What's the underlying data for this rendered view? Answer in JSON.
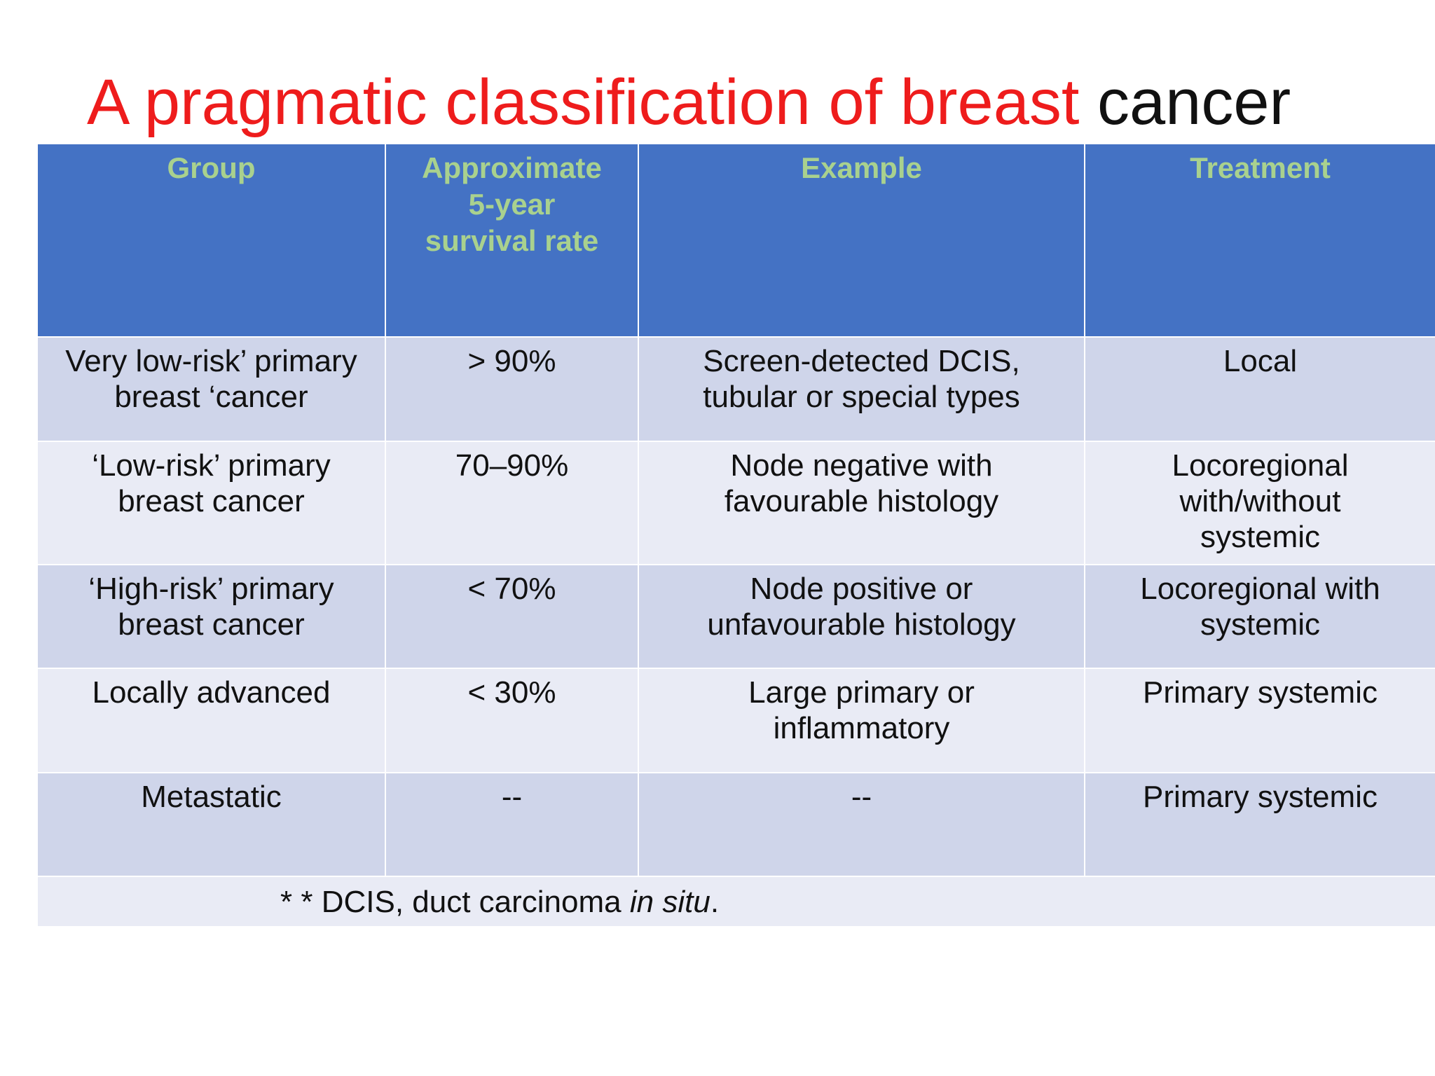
{
  "title": {
    "red_part": "A pragmatic classification of breast",
    "black_part": "cancer"
  },
  "colors": {
    "title_red": "#ee1c1c",
    "header_bg": "#4472c4",
    "header_text": "#a9d18e",
    "row_dark": "#cfd5ea",
    "row_light": "#e9ebf5"
  },
  "table": {
    "headers": {
      "group": "Group",
      "survival": "Approximate 5-year survival rate",
      "example": "Example",
      "treatment": "Treatment"
    },
    "rows": [
      {
        "group": "Very low-risk’ primary breast ‘cancer",
        "survival": "> 90%",
        "example": "Screen-detected DCIS, tubular or special types",
        "treatment": "Local"
      },
      {
        "group": "‘Low-risk’ primary breast cancer",
        "survival": "70–90%",
        "example": "Node negative with favourable histology",
        "treatment": "Locoregional with/without systemic"
      },
      {
        "group": "‘High-risk’ primary breast cancer",
        "survival": "< 70%",
        "example": "Node positive or unfavourable histology",
        "treatment": "Locoregional with systemic"
      },
      {
        "group": "Locally advanced",
        "survival": "< 30%",
        "example": "Large primary or inflammatory",
        "treatment": "Primary systemic"
      },
      {
        "group": "Metastatic",
        "survival": "--",
        "example": "--",
        "treatment": "Primary systemic"
      }
    ],
    "footnote": {
      "prefix": "* * DCIS, duct carcinoma ",
      "italic": "in situ",
      "suffix": "."
    }
  }
}
